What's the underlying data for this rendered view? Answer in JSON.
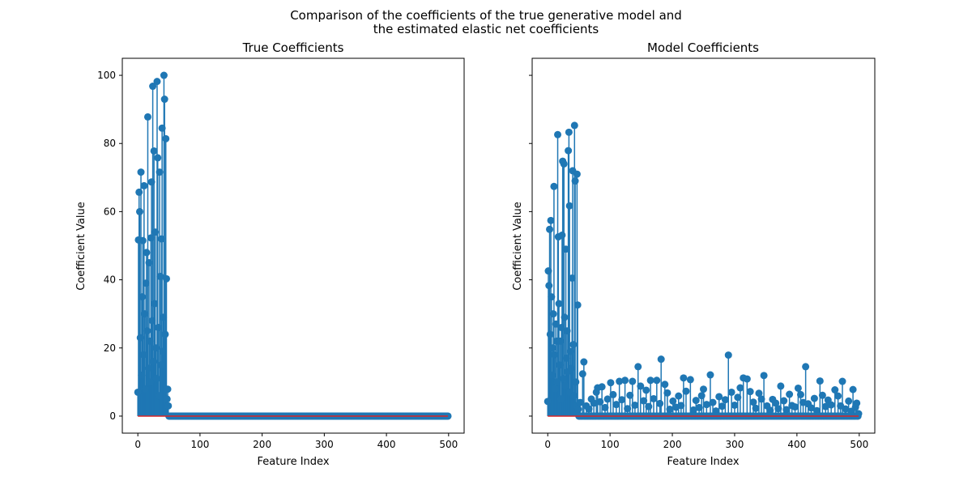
{
  "figure": {
    "suptitle_line1": "Comparison of the coefficients of the true generative model and",
    "suptitle_line2": "the estimated elastic net coefficients"
  },
  "chart_data": [
    {
      "type": "stem",
      "title": "True Coefficients",
      "xlabel": "Feature Index",
      "ylabel": "Coefficient Value",
      "xlim": [
        -25,
        525
      ],
      "ylim": [
        -5,
        105
      ],
      "xticks": [
        0,
        100,
        200,
        300,
        400,
        500
      ],
      "yticks": [
        0,
        20,
        40,
        60,
        80,
        100
      ],
      "n_features": 500,
      "note_values": "values for indices 0-49; all other indices are 0",
      "values": [
        7,
        51.7,
        65.7,
        60,
        23,
        71.6,
        12,
        35,
        51.5,
        18,
        67.6,
        30,
        8,
        39,
        48,
        25,
        87.8,
        14,
        45,
        22,
        10,
        52.3,
        68.7,
        28,
        96.8,
        16,
        77.8,
        33,
        54,
        20,
        11,
        98.2,
        75.8,
        26,
        6,
        71.6,
        41,
        15,
        52,
        84.5,
        19,
        29,
        100,
        93,
        24,
        81.4,
        40.3,
        5,
        7.9,
        3
      ],
      "tail_nonzero": [],
      "stem_color": "#1f77b4",
      "baseline_color": "#d62728",
      "grid": false
    },
    {
      "type": "stem",
      "title": "Model Coefficients",
      "xlabel": "Feature Index",
      "ylabel": "Coefficient Value",
      "xlim": [
        -25,
        525
      ],
      "ylim": [
        -5,
        105
      ],
      "xticks": [
        0,
        100,
        200,
        300,
        400,
        500
      ],
      "yticks": [
        0,
        20,
        40,
        60,
        80,
        100
      ],
      "n_features": 500,
      "note_values": "values for indices 0-49; tail_nonzero lists [index, value] for other nonzero indices",
      "values": [
        4.3,
        42.6,
        38.3,
        54.8,
        24,
        57.4,
        35,
        12,
        20,
        30,
        67.4,
        18,
        8,
        27,
        22,
        10,
        82.6,
        52.6,
        33,
        15,
        22,
        5,
        26,
        53.1,
        74.8,
        11,
        74,
        29,
        9,
        49,
        17,
        25,
        13,
        77.9,
        83.3,
        61.7,
        7,
        19,
        14,
        40.5,
        72,
        21,
        6,
        85.3,
        69,
        10,
        3,
        71,
        32.6,
        2
      ],
      "tail_nonzero": [
        [
          52,
          4
        ],
        [
          56,
          12.4
        ],
        [
          58,
          15.9
        ],
        [
          62,
          3
        ],
        [
          66,
          2.1
        ],
        [
          70,
          5
        ],
        [
          74,
          3.8
        ],
        [
          78,
          7
        ],
        [
          80,
          8.3
        ],
        [
          84,
          4.2
        ],
        [
          87,
          8.6
        ],
        [
          92,
          2.5
        ],
        [
          96,
          5
        ],
        [
          101,
          9.8
        ],
        [
          105,
          6.3
        ],
        [
          110,
          3.4
        ],
        [
          115,
          10.2
        ],
        [
          119,
          4.8
        ],
        [
          124,
          10.5
        ],
        [
          128,
          2.2
        ],
        [
          132,
          6.1
        ],
        [
          136,
          10.2
        ],
        [
          140,
          3.2
        ],
        [
          145,
          14.5
        ],
        [
          149,
          8.8
        ],
        [
          154,
          4.5
        ],
        [
          158,
          7.6
        ],
        [
          162,
          2.8
        ],
        [
          165,
          10.5
        ],
        [
          170,
          5.1
        ],
        [
          175,
          10.5
        ],
        [
          180,
          3.7
        ],
        [
          182,
          16.7
        ],
        [
          188,
          9.3
        ],
        [
          192,
          6.8
        ],
        [
          196,
          2
        ],
        [
          201,
          4.4
        ],
        [
          206,
          2.6
        ],
        [
          210,
          5.9
        ],
        [
          214,
          3.1
        ],
        [
          218,
          11.2
        ],
        [
          222,
          7.3
        ],
        [
          229,
          10.7
        ],
        [
          234,
          1.8
        ],
        [
          238,
          4.6
        ],
        [
          243,
          2.5
        ],
        [
          247,
          6
        ],
        [
          250,
          7.9
        ],
        [
          255,
          3.4
        ],
        [
          261,
          12.1
        ],
        [
          265,
          4
        ],
        [
          270,
          1.5
        ],
        [
          275,
          5.7
        ],
        [
          280,
          2.9
        ],
        [
          285,
          4.8
        ],
        [
          290,
          17.9
        ],
        [
          295,
          7
        ],
        [
          300,
          3.2
        ],
        [
          305,
          5.5
        ],
        [
          309,
          8.3
        ],
        [
          314,
          11.2
        ],
        [
          320,
          10.9
        ],
        [
          325,
          7.2
        ],
        [
          330,
          4.1
        ],
        [
          334,
          2.3
        ],
        [
          339,
          6.7
        ],
        [
          343,
          5
        ],
        [
          347,
          11.9
        ],
        [
          352,
          3
        ],
        [
          357,
          1.7
        ],
        [
          361,
          4.9
        ],
        [
          366,
          3.8
        ],
        [
          370,
          2.2
        ],
        [
          374,
          8.8
        ],
        [
          379,
          4.5
        ],
        [
          383,
          1.9
        ],
        [
          388,
          6.4
        ],
        [
          392,
          3.1
        ],
        [
          397,
          2.7
        ],
        [
          402,
          8.2
        ],
        [
          406,
          6.3
        ],
        [
          410,
          4
        ],
        [
          414,
          14.5
        ],
        [
          418,
          3.6
        ],
        [
          423,
          2.4
        ],
        [
          428,
          5.2
        ],
        [
          432,
          1.6
        ],
        [
          437,
          10.3
        ],
        [
          441,
          6.1
        ],
        [
          446,
          2.8
        ],
        [
          450,
          4.7
        ],
        [
          455,
          3.3
        ],
        [
          461,
          7.7
        ],
        [
          466,
          5.9
        ],
        [
          470,
          3
        ],
        [
          473,
          10.2
        ],
        [
          478,
          2.1
        ],
        [
          483,
          4.4
        ],
        [
          487,
          1.4
        ],
        [
          490,
          7.8
        ],
        [
          494,
          2.6
        ],
        [
          496,
          3.8
        ],
        [
          499,
          0.7
        ]
      ],
      "stem_color": "#1f77b4",
      "baseline_color": "#d62728",
      "grid": false,
      "shared_y": true
    }
  ]
}
